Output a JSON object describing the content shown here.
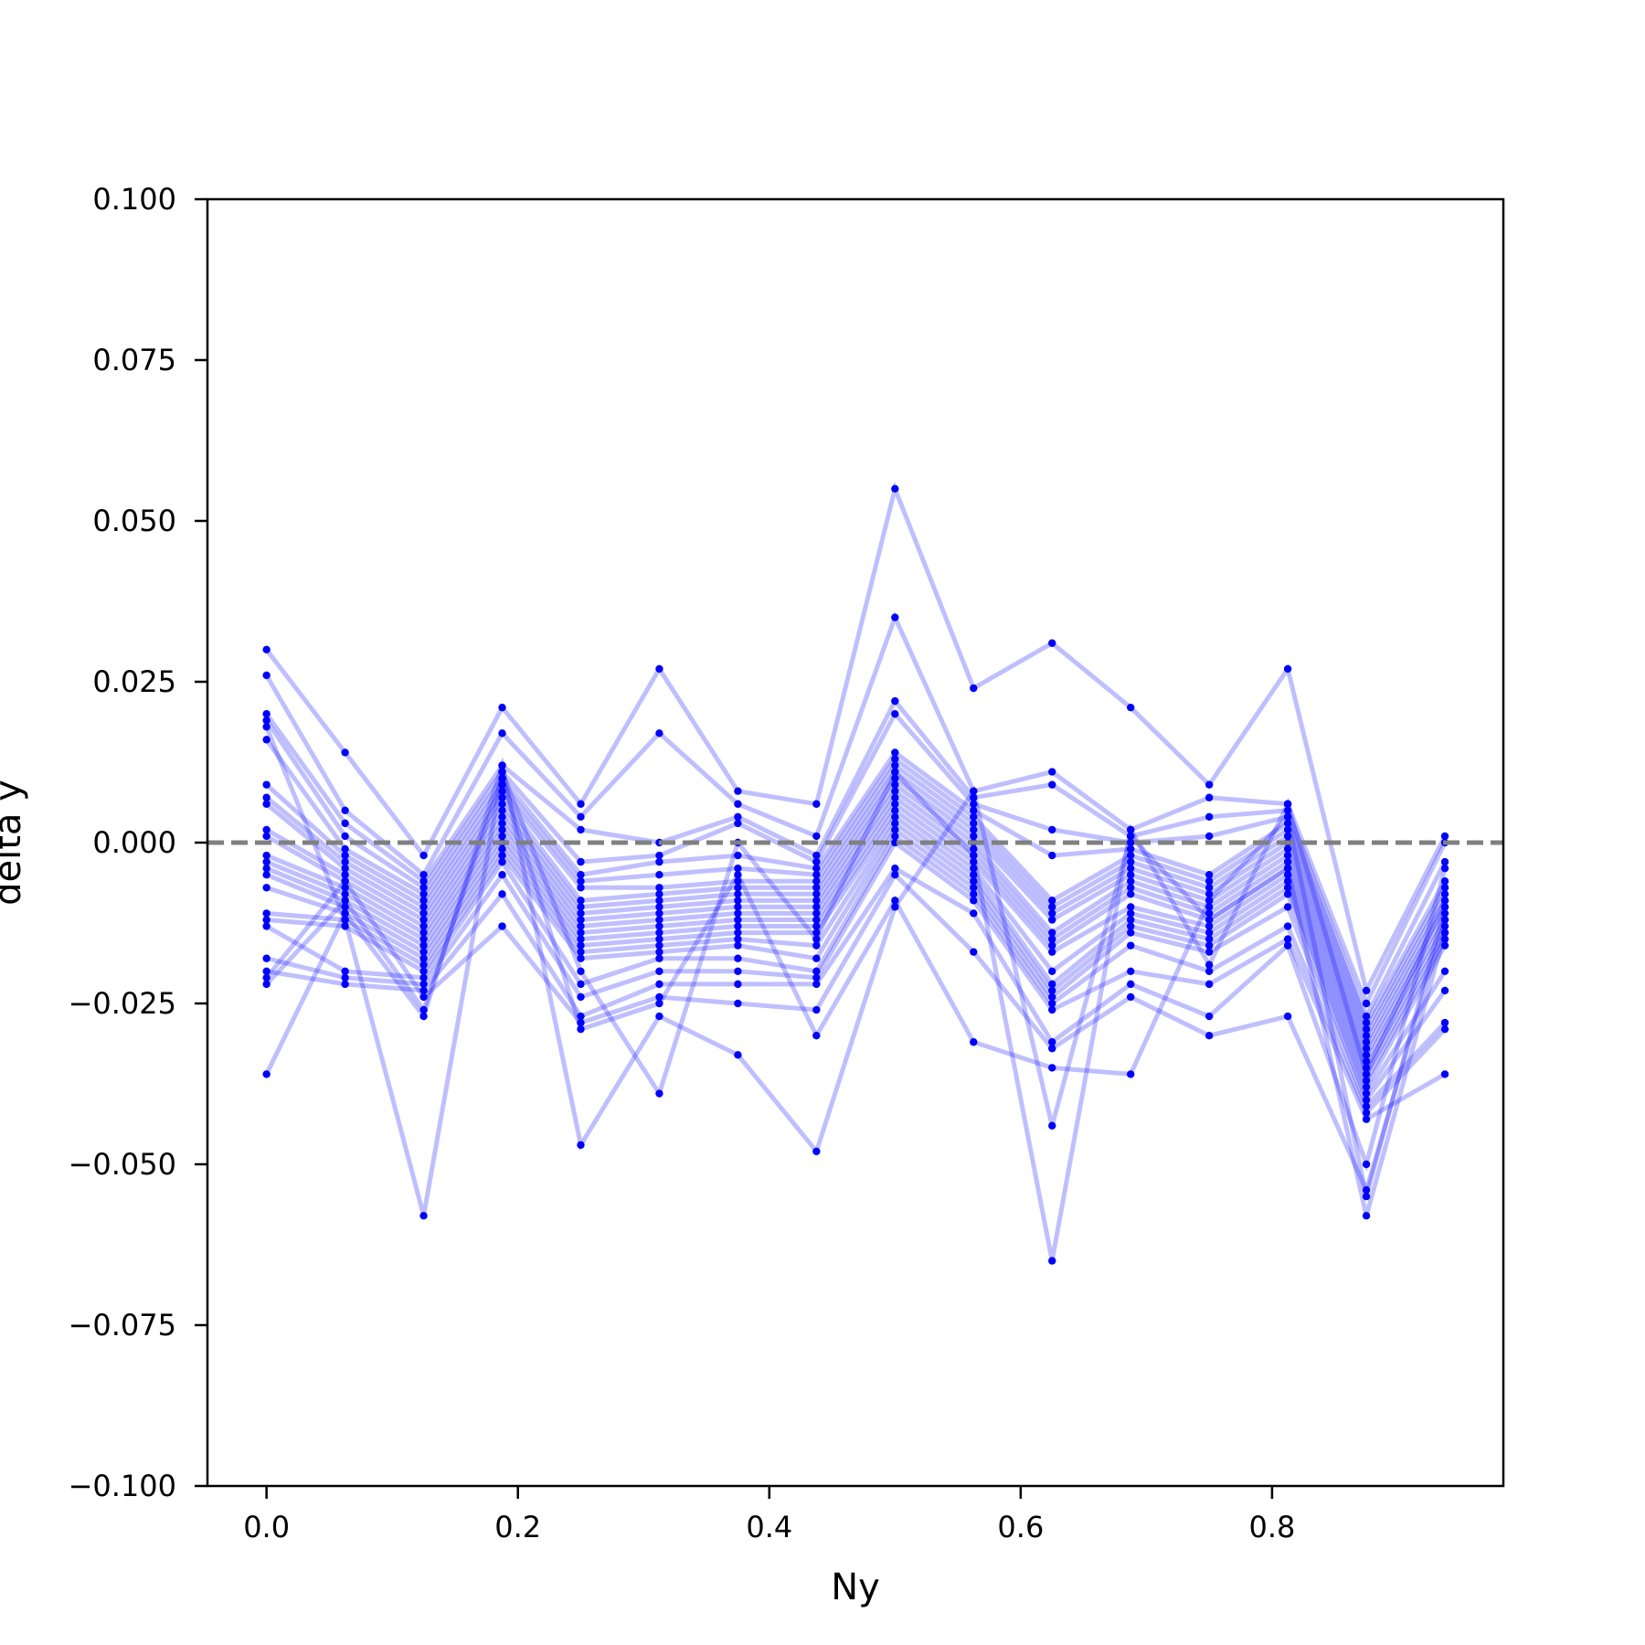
{
  "chart_data": {
    "type": "line",
    "title": "",
    "xlabel": "Ny",
    "ylabel": "delta y",
    "xlim": [
      -0.047,
      0.984
    ],
    "ylim": [
      -0.1,
      0.1
    ],
    "xticks": [
      0.0,
      0.2,
      0.4,
      0.6,
      0.8
    ],
    "xtick_labels": [
      "0.0",
      "0.2",
      "0.4",
      "0.6",
      "0.8"
    ],
    "yticks": [
      0.1,
      0.075,
      0.05,
      0.025,
      0.0,
      -0.025,
      -0.05,
      -0.075,
      -0.1
    ],
    "ytick_labels": [
      "0.100",
      "0.075",
      "0.050",
      "0.025",
      "0.000",
      "−0.025",
      "−0.050",
      "−0.075",
      "−0.100"
    ],
    "grid": false,
    "legend": "none",
    "reference_line": {
      "y": 0.0,
      "style": "dashed",
      "color": "#808080"
    },
    "line_color": "#0000ff",
    "line_alpha": 0.25,
    "marker_color": "#0000ff",
    "x": [
      0.0,
      0.0625,
      0.125,
      0.1875,
      0.25,
      0.3125,
      0.375,
      0.4375,
      0.5,
      0.5625,
      0.625,
      0.6875,
      0.75,
      0.8125,
      0.875,
      0.9375
    ],
    "series": [
      {
        "values": [
          0.03,
          0.014,
          -0.002,
          0.021,
          0.006,
          0.027,
          0.008,
          0.006,
          0.055,
          0.024,
          0.031,
          0.021,
          0.009,
          0.027,
          -0.023,
          0.001
        ]
      },
      {
        "values": [
          0.026,
          0.005,
          -0.005,
          0.017,
          0.004,
          0.017,
          0.006,
          0.001,
          0.035,
          0.008,
          0.011,
          0.002,
          0.007,
          0.006,
          -0.025,
          0.0
        ]
      },
      {
        "values": [
          0.02,
          0.003,
          -0.006,
          0.012,
          0.002,
          0.0,
          0.004,
          -0.002,
          0.022,
          0.007,
          0.009,
          0.001,
          0.004,
          0.005,
          -0.027,
          -0.003
        ]
      },
      {
        "values": [
          0.019,
          0.001,
          -0.007,
          0.011,
          -0.003,
          -0.002,
          0.003,
          -0.003,
          0.02,
          0.006,
          0.002,
          0.0,
          0.001,
          0.004,
          -0.028,
          -0.006
        ]
      },
      {
        "values": [
          0.016,
          -0.001,
          -0.008,
          0.01,
          -0.005,
          -0.003,
          -0.002,
          -0.004,
          0.014,
          0.005,
          -0.002,
          -0.001,
          -0.005,
          0.003,
          -0.029,
          -0.007
        ]
      },
      {
        "values": [
          0.009,
          -0.002,
          -0.009,
          0.009,
          -0.006,
          -0.005,
          -0.004,
          -0.005,
          0.013,
          0.004,
          -0.009,
          -0.002,
          -0.006,
          0.002,
          -0.03,
          -0.008
        ]
      },
      {
        "values": [
          0.007,
          -0.003,
          -0.01,
          0.008,
          -0.007,
          -0.007,
          -0.006,
          -0.006,
          0.012,
          0.003,
          -0.01,
          -0.003,
          -0.007,
          0.001,
          -0.031,
          -0.009
        ]
      },
      {
        "values": [
          0.006,
          -0.004,
          -0.011,
          0.007,
          -0.009,
          -0.008,
          -0.007,
          -0.007,
          0.011,
          0.002,
          -0.011,
          -0.004,
          -0.008,
          0.0,
          -0.032,
          -0.01
        ]
      },
      {
        "values": [
          0.002,
          -0.005,
          -0.012,
          0.006,
          -0.01,
          -0.009,
          -0.008,
          -0.008,
          0.01,
          0.001,
          -0.012,
          -0.005,
          -0.009,
          -0.001,
          -0.033,
          -0.011
        ]
      },
      {
        "values": [
          0.001,
          -0.006,
          -0.013,
          0.005,
          -0.011,
          -0.01,
          -0.009,
          -0.009,
          0.009,
          0.0,
          -0.014,
          -0.006,
          -0.01,
          -0.002,
          -0.034,
          -0.012
        ]
      },
      {
        "values": [
          -0.002,
          -0.007,
          -0.014,
          0.004,
          -0.012,
          -0.011,
          -0.01,
          -0.01,
          0.008,
          -0.001,
          -0.015,
          -0.007,
          -0.011,
          -0.003,
          -0.035,
          -0.013
        ]
      },
      {
        "values": [
          -0.003,
          -0.008,
          -0.015,
          0.003,
          -0.013,
          -0.012,
          -0.011,
          -0.011,
          0.007,
          -0.002,
          -0.016,
          -0.008,
          -0.012,
          -0.004,
          -0.036,
          -0.014
        ]
      },
      {
        "values": [
          -0.004,
          -0.009,
          -0.016,
          0.002,
          -0.014,
          -0.013,
          -0.012,
          -0.012,
          0.006,
          -0.003,
          -0.017,
          -0.01,
          -0.013,
          -0.005,
          -0.037,
          -0.015
        ]
      },
      {
        "values": [
          -0.005,
          -0.01,
          -0.017,
          0.001,
          -0.015,
          -0.014,
          -0.013,
          -0.013,
          0.005,
          -0.004,
          -0.02,
          -0.011,
          -0.014,
          -0.006,
          -0.038,
          -0.016
        ]
      },
      {
        "values": [
          -0.007,
          -0.011,
          -0.018,
          0.0,
          -0.016,
          -0.015,
          -0.014,
          -0.014,
          0.004,
          -0.005,
          -0.022,
          -0.012,
          -0.015,
          -0.007,
          -0.039,
          -0.02
        ]
      },
      {
        "values": [
          -0.011,
          -0.012,
          -0.019,
          -0.001,
          -0.017,
          -0.016,
          -0.015,
          -0.016,
          0.003,
          -0.006,
          -0.023,
          -0.013,
          -0.016,
          -0.008,
          -0.04,
          -0.023
        ]
      },
      {
        "values": [
          -0.012,
          -0.013,
          -0.02,
          -0.002,
          -0.018,
          -0.017,
          -0.016,
          -0.018,
          0.002,
          -0.007,
          -0.024,
          -0.014,
          -0.017,
          -0.01,
          -0.041,
          -0.028
        ]
      },
      {
        "values": [
          -0.013,
          -0.02,
          -0.021,
          -0.003,
          -0.022,
          -0.018,
          -0.018,
          -0.02,
          0.001,
          -0.008,
          -0.025,
          -0.016,
          -0.02,
          -0.013,
          -0.042,
          -0.029
        ]
      },
      {
        "values": [
          -0.018,
          -0.021,
          -0.022,
          -0.005,
          -0.024,
          -0.02,
          -0.02,
          -0.021,
          0.0,
          -0.009,
          -0.026,
          -0.02,
          -0.022,
          -0.015,
          -0.043,
          -0.036
        ]
      },
      {
        "values": [
          -0.02,
          -0.022,
          -0.023,
          -0.008,
          -0.027,
          -0.022,
          -0.022,
          -0.022,
          -0.004,
          -0.011,
          -0.031,
          -0.022,
          -0.027,
          -0.016,
          -0.05,
          -0.004
        ]
      },
      {
        "values": [
          -0.021,
          -0.006,
          -0.024,
          -0.013,
          -0.028,
          -0.024,
          -0.025,
          -0.026,
          -0.005,
          -0.017,
          -0.032,
          -0.024,
          -0.03,
          -0.027,
          -0.054,
          -0.012
        ]
      },
      {
        "values": [
          -0.022,
          -0.009,
          -0.026,
          0.01,
          -0.029,
          -0.025,
          -0.005,
          -0.03,
          -0.009,
          -0.031,
          -0.035,
          -0.036,
          -0.009,
          0.004,
          -0.055,
          -0.01
        ]
      },
      {
        "values": [
          -0.036,
          -0.011,
          -0.027,
          0.012,
          -0.047,
          -0.027,
          -0.033,
          -0.048,
          -0.01,
          0.008,
          -0.044,
          0.001,
          -0.012,
          -0.004,
          -0.058,
          -0.014
        ]
      },
      {
        "values": [
          0.018,
          -0.012,
          -0.058,
          0.011,
          -0.02,
          -0.039,
          0.0,
          -0.015,
          0.011,
          -0.002,
          -0.065,
          0.002,
          -0.019,
          0.006,
          -0.036,
          -0.009
        ]
      }
    ]
  }
}
